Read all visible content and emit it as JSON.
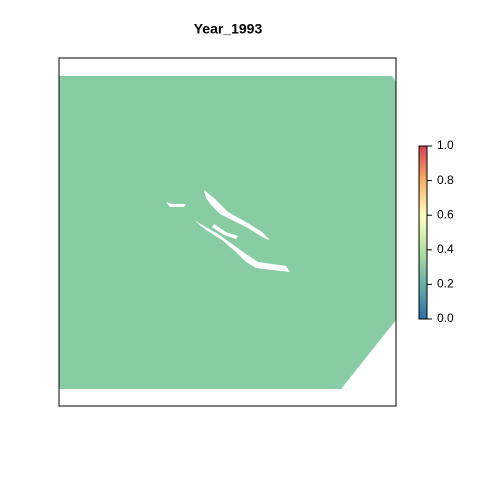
{
  "map_data": {
    "title": "Year_1993",
    "raster_value": 0.3,
    "raster_color": "#88cca4",
    "legend_lim": [
      0,
      1
    ],
    "legend_ticks": [
      0.0,
      0.2,
      0.4,
      0.6,
      0.8,
      1.0
    ],
    "legend_labels": [
      "0.0",
      "0.2",
      "0.4",
      "0.6",
      "0.8",
      "1.0"
    ]
  }
}
